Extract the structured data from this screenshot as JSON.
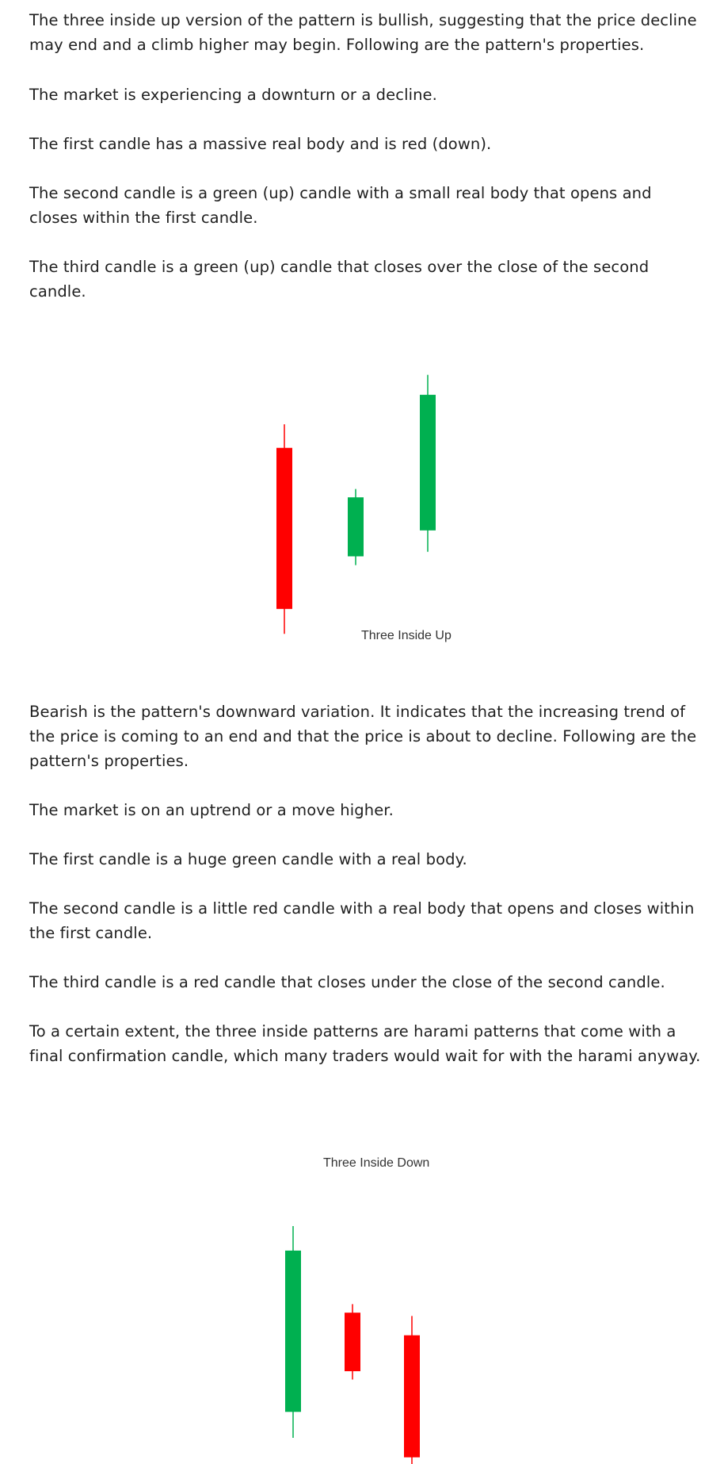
{
  "article": {
    "paragraphs_up": [
      "The three inside up version of the pattern is bullish, suggesting that the price decline may end and a climb higher may begin. Following are the pattern's properties.",
      "The market is experiencing a downturn or a decline.",
      "The first candle has a massive real body and is red (down).",
      "The second candle is a green (up) candle with a small real body that opens and closes within the first candle.",
      "The third candle is a green (up) candle that closes over the close of the second candle."
    ],
    "paragraphs_down": [
      "Bearish is the pattern's downward variation. It indicates that the increasing trend of the price is coming to an end and that the price is about to decline. Following are the pattern's properties.",
      "The market is on an uptrend or a move higher.",
      "The first candle is a huge green candle with a real body.",
      "The second candle is a little red candle with a real body that opens and closes within the first candle.",
      "The third candle is a red candle that closes under the close of the second candle.",
      "To a certain extent, the three inside patterns are harami patterns that come with a final confirmation candle, which many traders would wait for with the harami anyway."
    ]
  },
  "figures": {
    "up": {
      "label": "Three Inside Up",
      "colors": {
        "bull": "#00b050",
        "bear": "#ff0000"
      },
      "candles": [
        {
          "color": "bear",
          "open": 90.1,
          "close": 22.4,
          "high": 100.0,
          "low": 11.9
        },
        {
          "color": "bull",
          "open": 44.5,
          "close": 69.3,
          "high": 72.8,
          "low": 40.8
        },
        {
          "color": "bull",
          "open": 55.4,
          "close": 112.4,
          "high": 120.8,
          "low": 46.4
        }
      ]
    },
    "down": {
      "label": "Three Inside Down",
      "colors": {
        "bull": "#00b050",
        "bear": "#ff0000"
      },
      "candles": [
        {
          "color": "bull",
          "open": 11.9,
          "close": 79.7,
          "high": 90.0,
          "low": 1.0
        },
        {
          "color": "bear",
          "open": 53.6,
          "close": 29.0,
          "high": 57.2,
          "low": 25.5
        },
        {
          "color": "bear",
          "open": 44.1,
          "close": -7.2,
          "high": 52.2,
          "low": -15.4
        }
      ]
    }
  }
}
